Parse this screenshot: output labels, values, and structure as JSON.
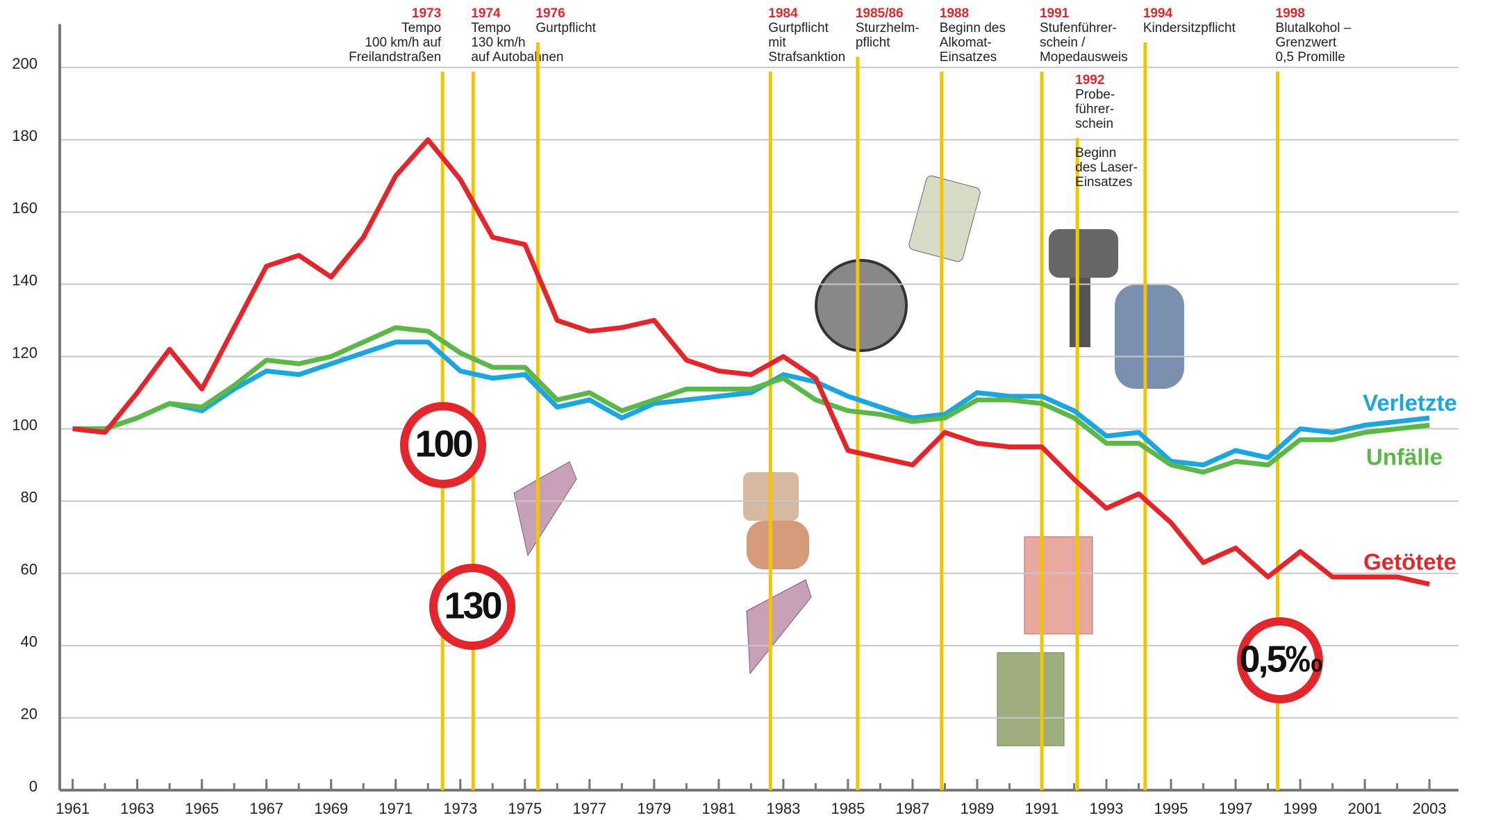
{
  "chart_data": {
    "type": "line",
    "x": [
      1961,
      1962,
      1963,
      1964,
      1965,
      1966,
      1967,
      1968,
      1969,
      1970,
      1971,
      1972,
      1973,
      1974,
      1975,
      1976,
      1977,
      1978,
      1979,
      1980,
      1981,
      1982,
      1983,
      1984,
      1985,
      1986,
      1987,
      1988,
      1989,
      1990,
      1991,
      1992,
      1993,
      1994,
      1995,
      1996,
      1997,
      1998,
      1999,
      2000,
      2001,
      2002,
      2003
    ],
    "series": [
      {
        "name": "Verletzte",
        "color": "#1ba6e0",
        "values": [
          100,
          100,
          103,
          107,
          105,
          111,
          116,
          115,
          118,
          121,
          124,
          124,
          116,
          114,
          115,
          106,
          108,
          103,
          107,
          108,
          109,
          110,
          115,
          113,
          109,
          106,
          103,
          104,
          110,
          109,
          109,
          105,
          98,
          99,
          91,
          90,
          94,
          92,
          100,
          99,
          101,
          102,
          103
        ]
      },
      {
        "name": "Unfälle",
        "color": "#5bb848",
        "values": [
          100,
          100,
          103,
          107,
          106,
          112,
          119,
          118,
          120,
          124,
          128,
          127,
          121,
          117,
          117,
          108,
          110,
          105,
          108,
          111,
          111,
          111,
          114,
          108,
          105,
          104,
          102,
          103,
          108,
          108,
          107,
          103,
          96,
          96,
          90,
          88,
          91,
          90,
          97,
          97,
          99,
          100,
          101
        ]
      },
      {
        "name": "Getötete",
        "color": "#e3262b",
        "values": [
          100,
          99,
          110,
          122,
          111,
          128,
          145,
          148,
          142,
          153,
          170,
          180,
          169,
          153,
          151,
          130,
          127,
          128,
          130,
          119,
          116,
          115,
          120,
          114,
          94,
          92,
          90,
          99,
          96,
          95,
          95,
          86,
          78,
          82,
          74,
          63,
          67,
          59,
          66,
          59,
          59,
          59,
          57
        ]
      }
    ],
    "xlim": [
      1960.6,
      2003.9
    ],
    "xticks": [
      1961,
      1963,
      1965,
      1967,
      1969,
      1971,
      1973,
      1975,
      1977,
      1979,
      1981,
      1983,
      1985,
      1987,
      1989,
      1991,
      1993,
      1995,
      1997,
      1999,
      2001,
      2003
    ],
    "ylim": [
      0,
      212
    ],
    "yticks": [
      0,
      20,
      40,
      60,
      80,
      100,
      120,
      140,
      160,
      180,
      200
    ],
    "grid": true,
    "events": [
      {
        "year": "1973",
        "x": 1972.45,
        "lines": [
          "Tempo",
          "100 km/h auf",
          "Freilandstraßen"
        ],
        "anchor": "end"
      },
      {
        "year": "1974",
        "x": 1973.4,
        "lines": [
          "Tempo",
          "130 km/h",
          "auf Autobahnen"
        ]
      },
      {
        "year": "1976",
        "x": 1975.4,
        "lines": [
          "Gurtpflicht"
        ]
      },
      {
        "year": "1984",
        "x": 1982.6,
        "lines": [
          "Gurtpflicht",
          "mit",
          "Strafsanktion"
        ]
      },
      {
        "year": "1985/86",
        "x": 1985.3,
        "lines": [
          "Sturzhelm-",
          "pflicht"
        ]
      },
      {
        "year": "1988",
        "x": 1987.9,
        "lines": [
          "Beginn des",
          "Alkomat-",
          "Einsatzes"
        ]
      },
      {
        "year": "1991",
        "x": 1991.0,
        "lines": [
          "Stufenführer-",
          "schein /",
          "Mopedausweis"
        ]
      },
      {
        "year": "1992",
        "x": 1992.1,
        "lines": [
          "Probe-",
          "führer-",
          "schein"
        ],
        "lines2": [
          "Beginn",
          "des Laser-",
          "Einsatzes"
        ],
        "row": 2
      },
      {
        "year": "1994",
        "x": 1994.2,
        "lines": [
          "Kindersitzpflicht"
        ]
      },
      {
        "year": "1998",
        "x": 1998.3,
        "lines": [
          "Blutalkohol –",
          "Grenzwert",
          "0,5 Promille"
        ]
      }
    ],
    "signs": [
      "100",
      "130",
      "0,5‰"
    ]
  }
}
